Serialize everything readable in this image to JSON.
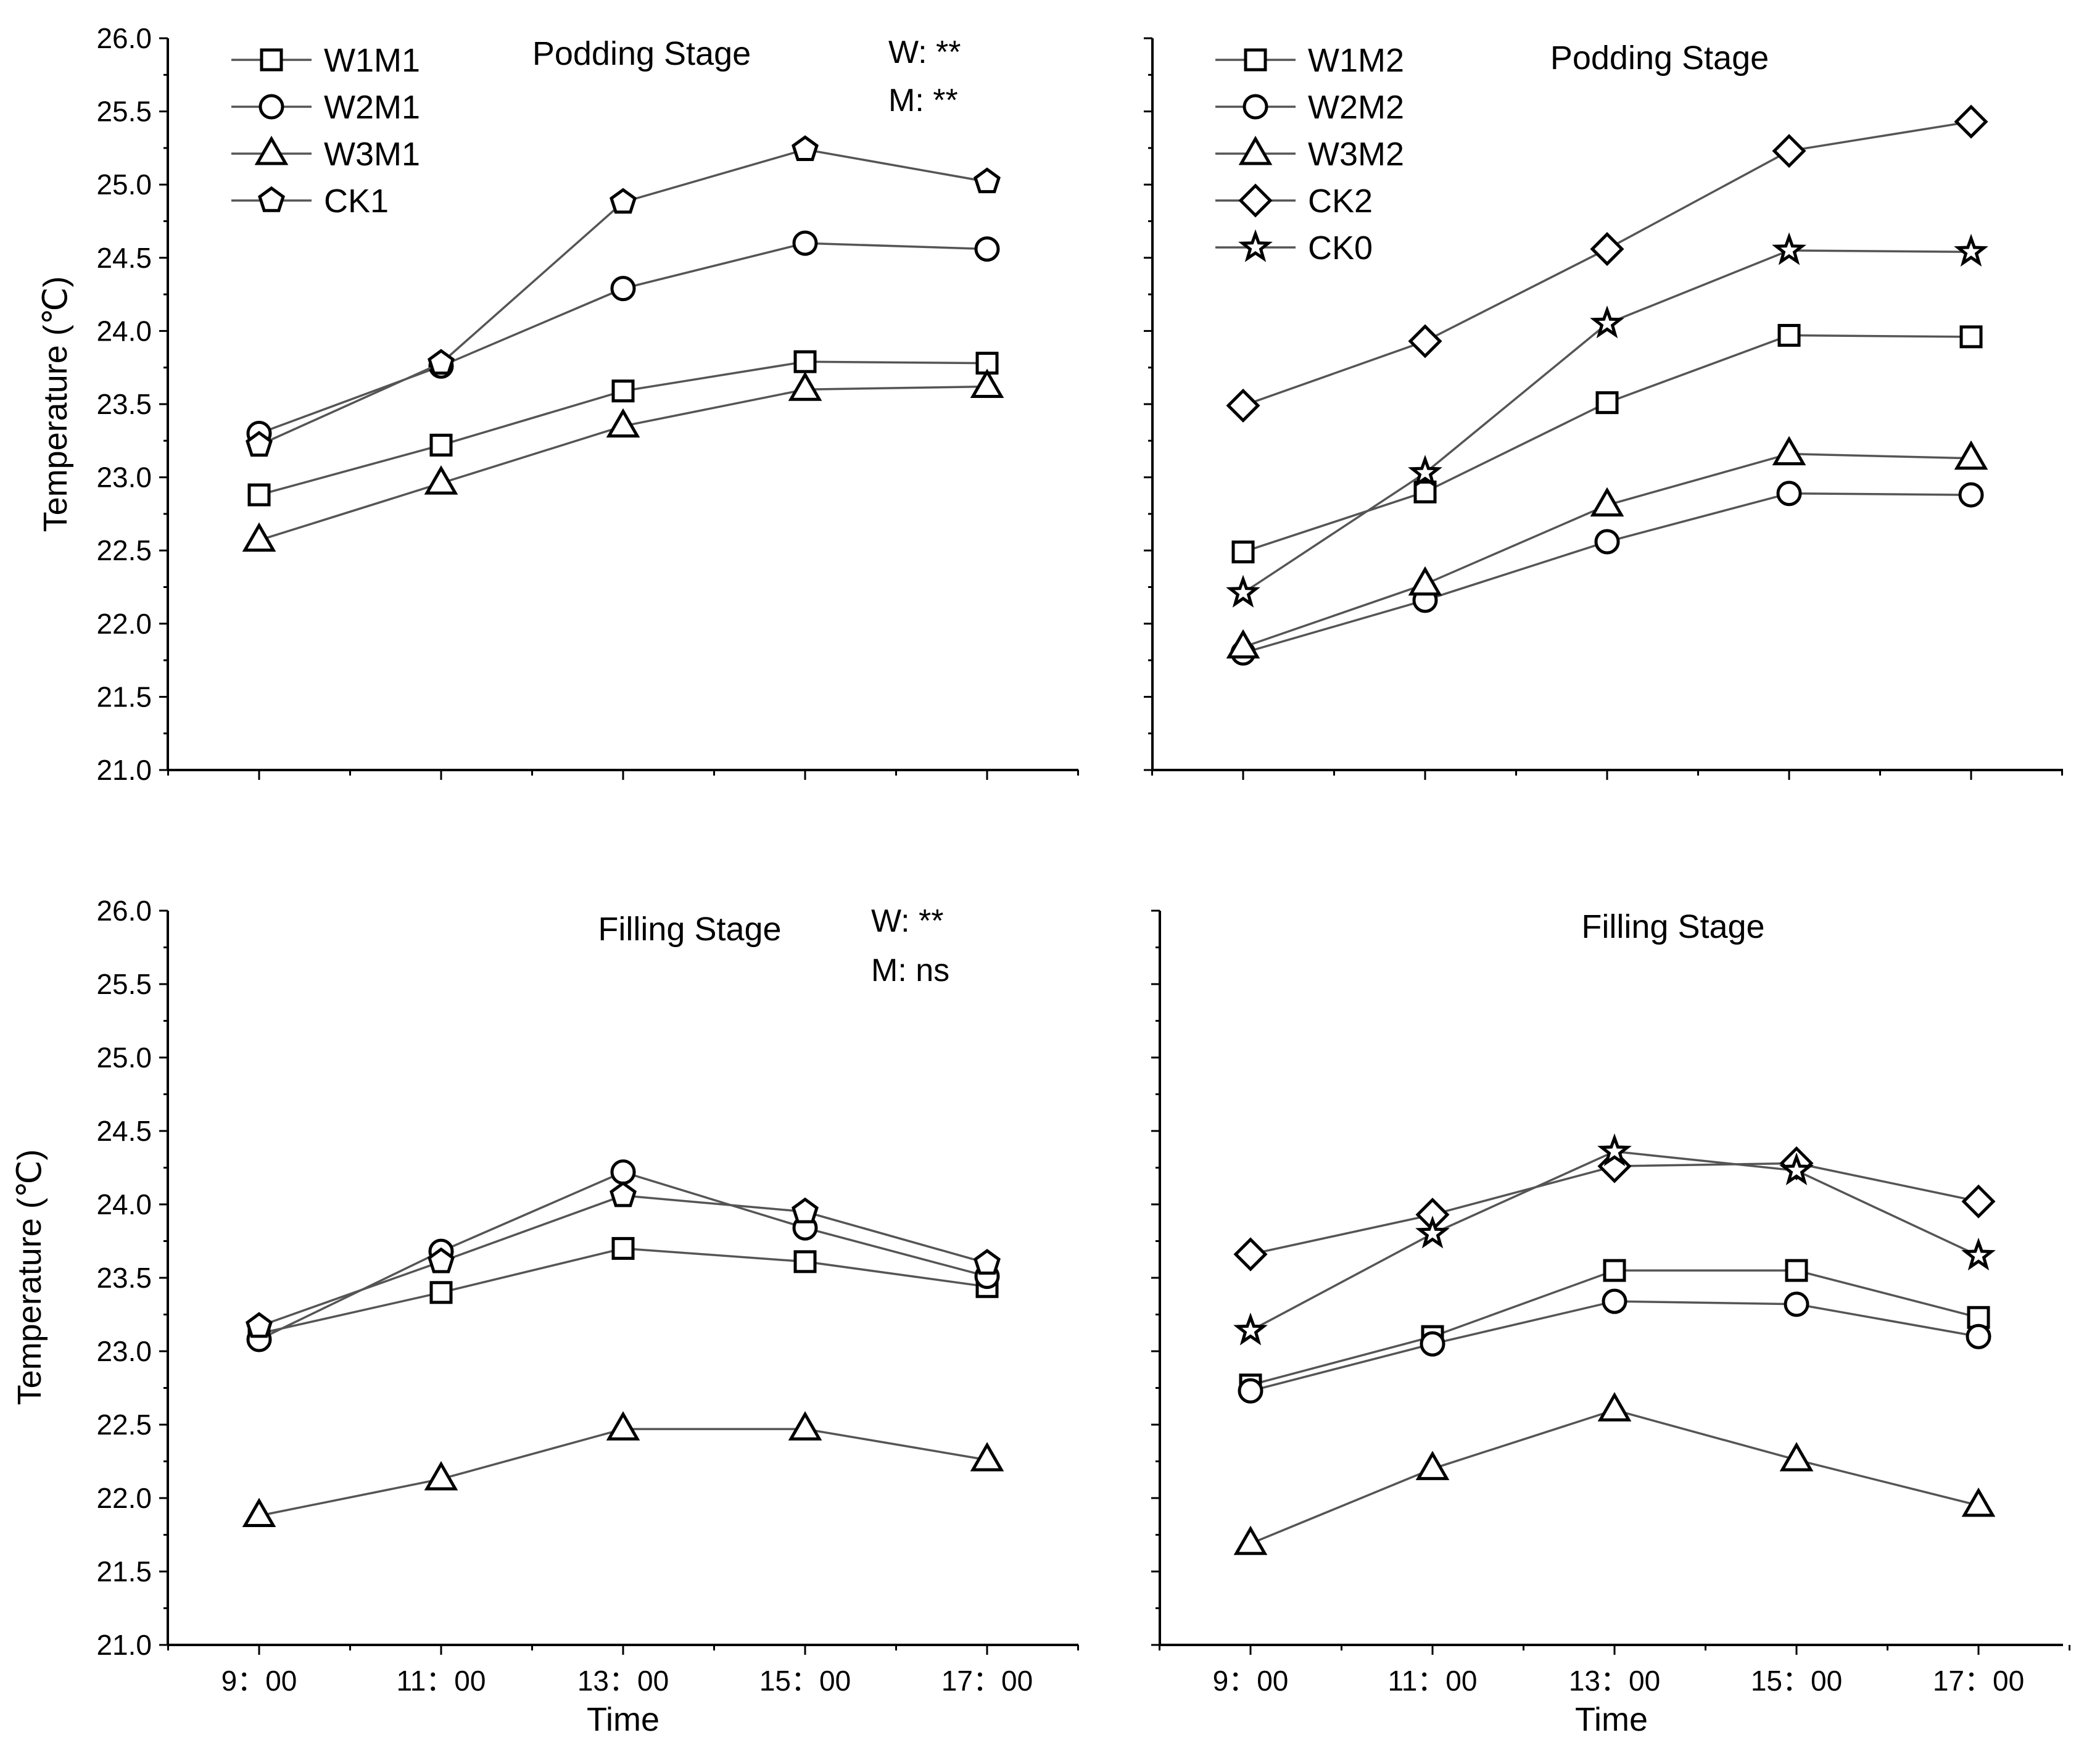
{
  "chart_data": [
    {
      "type": "line",
      "title": "Podding Stage",
      "stats": [
        "W: **",
        "M: **"
      ],
      "ylabel": "Temperature (℃)",
      "xlabel": "",
      "categories": [
        "9：00",
        "11：00",
        "13：00",
        "15：00",
        "17：00"
      ],
      "ylim": [
        21.0,
        26.0
      ],
      "yticks": [
        "21.0",
        "21.5",
        "22.0",
        "22.5",
        "23.0",
        "23.5",
        "24.0",
        "24.5",
        "25.0",
        "25.5",
        "26.0"
      ],
      "legend": "top-left",
      "series": [
        {
          "name": "W1M1",
          "marker": "square",
          "values": [
            22.88,
            23.22,
            23.59,
            23.79,
            23.78
          ]
        },
        {
          "name": "W2M1",
          "marker": "circle",
          "values": [
            23.3,
            23.76,
            24.29,
            24.6,
            24.56
          ]
        },
        {
          "name": "W3M1",
          "marker": "triangle",
          "values": [
            22.57,
            22.96,
            23.35,
            23.6,
            23.62
          ]
        },
        {
          "name": "CK1",
          "marker": "pentagon",
          "values": [
            23.22,
            23.78,
            24.88,
            25.24,
            25.02
          ]
        }
      ]
    },
    {
      "type": "line",
      "title": "Podding Stage",
      "stats": [],
      "ylabel": "",
      "xlabel": "",
      "categories": [
        "9：00",
        "11：00",
        "13：00",
        "15：00",
        "17：00"
      ],
      "ylim": [
        21.0,
        26.0
      ],
      "yticks": [],
      "legend": "top-left",
      "series": [
        {
          "name": "W1M2",
          "marker": "square",
          "values": [
            22.49,
            22.9,
            23.51,
            23.97,
            23.96
          ]
        },
        {
          "name": "W2M2",
          "marker": "circle",
          "values": [
            21.8,
            22.16,
            22.56,
            22.89,
            22.88
          ]
        },
        {
          "name": "W3M2",
          "marker": "triangle",
          "values": [
            21.84,
            22.27,
            22.81,
            23.16,
            23.13
          ]
        },
        {
          "name": "CK2",
          "marker": "diamond",
          "values": [
            23.49,
            23.93,
            24.56,
            25.23,
            25.43
          ]
        },
        {
          "name": "CK0",
          "marker": "star",
          "values": [
            22.21,
            23.03,
            24.05,
            24.55,
            24.54
          ]
        }
      ]
    },
    {
      "type": "line",
      "title": "Filling Stage",
      "stats": [
        "W: **",
        "M: ns"
      ],
      "ylabel": "Temperature (℃)",
      "xlabel": "Time",
      "categories": [
        "9：00",
        "11：00",
        "13：00",
        "15：00",
        "17：00"
      ],
      "ylim": [
        21.0,
        26.0
      ],
      "yticks": [
        "21.0",
        "21.5",
        "22.0",
        "22.5",
        "23.0",
        "23.5",
        "24.0",
        "24.5",
        "25.0",
        "25.5",
        "26.0"
      ],
      "legend": "none",
      "series": [
        {
          "name": "W1M1",
          "marker": "square",
          "values": [
            23.12,
            23.4,
            23.7,
            23.61,
            23.44
          ]
        },
        {
          "name": "W2M1",
          "marker": "circle",
          "values": [
            23.08,
            23.68,
            24.22,
            23.84,
            23.51
          ]
        },
        {
          "name": "W3M1",
          "marker": "triangle",
          "values": [
            21.88,
            22.13,
            22.47,
            22.47,
            22.26
          ]
        },
        {
          "name": "CK1",
          "marker": "pentagon",
          "values": [
            23.17,
            23.61,
            24.06,
            23.95,
            23.6
          ]
        }
      ]
    },
    {
      "type": "line",
      "title": "Filling Stage",
      "stats": [],
      "ylabel": "",
      "xlabel": "Time",
      "categories": [
        "9：00",
        "11：00",
        "13：00",
        "15：00",
        "17：00"
      ],
      "ylim": [
        21.0,
        26.0
      ],
      "yticks": [],
      "legend": "none",
      "series": [
        {
          "name": "W1M2",
          "marker": "square",
          "values": [
            22.77,
            23.1,
            23.55,
            23.55,
            23.23
          ]
        },
        {
          "name": "W2M2",
          "marker": "circle",
          "values": [
            22.73,
            23.05,
            23.34,
            23.32,
            23.1
          ]
        },
        {
          "name": "W3M2",
          "marker": "triangle",
          "values": [
            21.69,
            22.2,
            22.6,
            22.26,
            21.95
          ]
        },
        {
          "name": "CK2",
          "marker": "diamond",
          "values": [
            23.66,
            23.93,
            24.26,
            24.28,
            24.02
          ]
        },
        {
          "name": "CK0",
          "marker": "star",
          "values": [
            23.14,
            23.8,
            24.36,
            24.23,
            23.65
          ]
        }
      ]
    }
  ]
}
